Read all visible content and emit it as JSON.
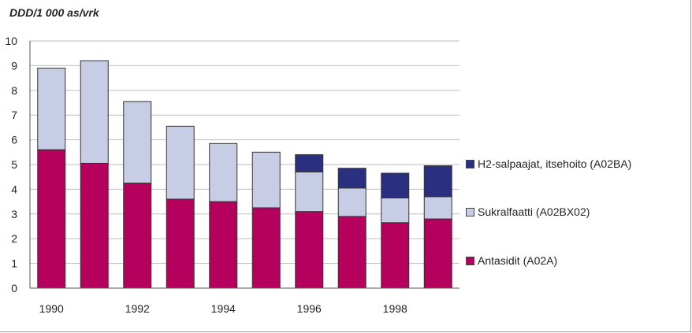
{
  "chart_data": {
    "type": "bar",
    "stacked": true,
    "ylabel": "DDD/1 000 as/vrk",
    "ylim": [
      0,
      10
    ],
    "yticks": [
      0,
      1,
      2,
      3,
      4,
      5,
      6,
      7,
      8,
      9,
      10
    ],
    "grid": true,
    "legend_position": "right",
    "categories": [
      "1990",
      "1991",
      "1992",
      "1993",
      "1994",
      "1995",
      "1996",
      "1997",
      "1998",
      "1999"
    ],
    "xtick_labels": [
      "1990",
      "",
      "1992",
      "",
      "1994",
      "",
      "1996",
      "",
      "1998",
      ""
    ],
    "series": [
      {
        "name": "Antasidit (A02A)",
        "color": "#b5005e",
        "values": [
          5.6,
          5.05,
          4.25,
          3.6,
          3.5,
          3.25,
          3.1,
          2.9,
          2.65,
          2.8
        ]
      },
      {
        "name": "Sukralfaatti (A02BX02)",
        "color": "#c8cde6",
        "values": [
          3.3,
          4.15,
          3.3,
          2.95,
          2.35,
          2.25,
          1.6,
          1.15,
          1.0,
          0.9
        ]
      },
      {
        "name": "H2-salpaajat, itsehoito (A02BA)",
        "color": "#2b2f80",
        "values": [
          0,
          0,
          0,
          0,
          0,
          0,
          0.7,
          0.8,
          1.0,
          1.25
        ]
      }
    ]
  }
}
